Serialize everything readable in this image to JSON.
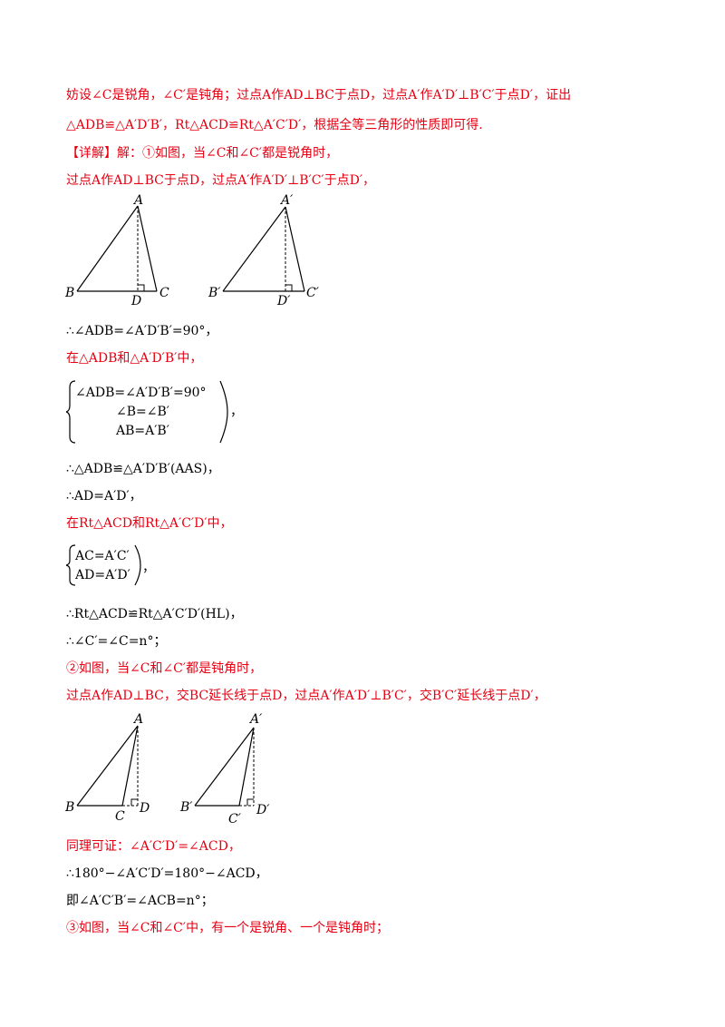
{
  "lines": {
    "l1": "妨设∠C是锐角，∠C′是钝角；过点A作AD⊥BC于点D，过点A′作A′D′⊥B′C′于点D′，证出",
    "l2": "△ADB≌△A′D′B′，Rt△ACD≌Rt△A′C′D′，根据全等三角形的性质即可得.",
    "l3_tag": "【详解】",
    "l3_text": "解：①如图，当∠C和∠C′都是锐角时，",
    "l4": "过点A作AD⊥BC于点D，过点A′作A′D′⊥B′C′于点D′，",
    "l5": "∴∠ADB=∠A′D′B′=90°，",
    "l6": "在△ADB和△A′D′B′中，",
    "l7": "∴△ADB≌△A′D′B′(AAS)，",
    "l8": "∴AD=A′D′，",
    "l9": "在Rt△ACD和Rt△A′C′D′中，",
    "l10": "∴Rt△ACD≌Rt△A′C′D′(HL)，",
    "l11": "∴∠C′=∠C=n°；",
    "l12": "②如图，当∠C和∠C′都是钝角时，",
    "l13": "过点A作AD⊥BC，交BC延长线于点D，过点A′作A′D′⊥B′C′，交B′C′延长线于点D′，",
    "l14": "同理可证：∠A′C′D′=∠ACD，",
    "l15": "∴180°−∠A′C′D′=180°−∠ACD，",
    "l16": "即∠A′C′B′=∠ACB=n°；",
    "l17": "③如图，当∠C和∠C′中，有一个是锐角、一个是钝角时；"
  },
  "system1": {
    "r1": "∠ADB=∠A′D′B′=90°",
    "r2": "∠B=∠B′",
    "r3": "AB=A′B′",
    "tail": "，"
  },
  "system2": {
    "r1": "AC=A′C′",
    "r2": "AD=A′D′",
    "tail": "，"
  },
  "figure1": {
    "A": "A",
    "B": "B",
    "C": "C",
    "D": "D",
    "A2": "A′",
    "B2": "B′",
    "C2": "C′",
    "D2": "D′"
  },
  "figure2": {
    "A": "A",
    "B": "B",
    "C": "C",
    "D": "D",
    "A2": "A′",
    "B2": "B′",
    "C2": "C′",
    "D2": "D′"
  }
}
